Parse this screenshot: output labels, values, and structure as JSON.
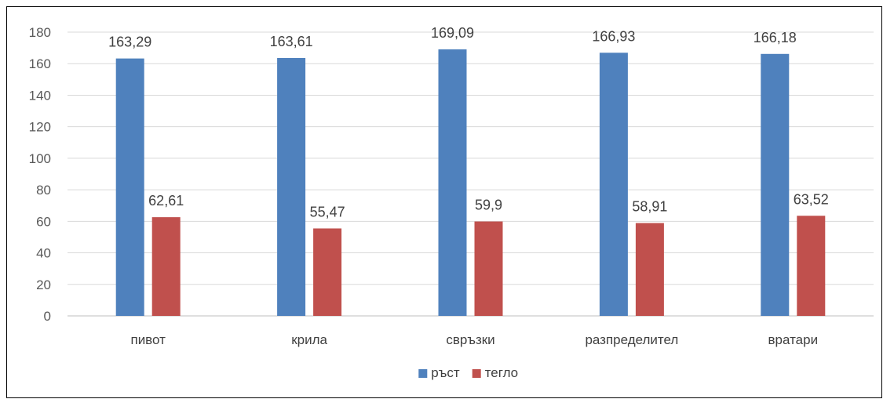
{
  "chart_data": {
    "type": "bar",
    "categories": [
      "пивот",
      "крила",
      "свръзки",
      "разпределител",
      "вратари"
    ],
    "series": [
      {
        "name": "ръст",
        "color": "#4f81bd",
        "values": [
          163.29,
          163.61,
          169.09,
          166.93,
          166.18
        ],
        "labels": [
          "163,29",
          "163,61",
          "169,09",
          "166,93",
          "166,18"
        ]
      },
      {
        "name": "тегло",
        "color": "#c0504d",
        "values": [
          62.61,
          55.47,
          59.9,
          58.91,
          63.52
        ],
        "labels": [
          "62,61",
          "55,47",
          "59,9",
          "58,91",
          "63,52"
        ]
      }
    ],
    "ylim": [
      0,
      180
    ],
    "yticks": [
      0,
      20,
      40,
      60,
      80,
      100,
      120,
      140,
      160,
      180
    ],
    "grid": true,
    "legend": "bottom-center",
    "gridline_color": "#d9d9d9",
    "axis_color": "#bfbfbf"
  }
}
